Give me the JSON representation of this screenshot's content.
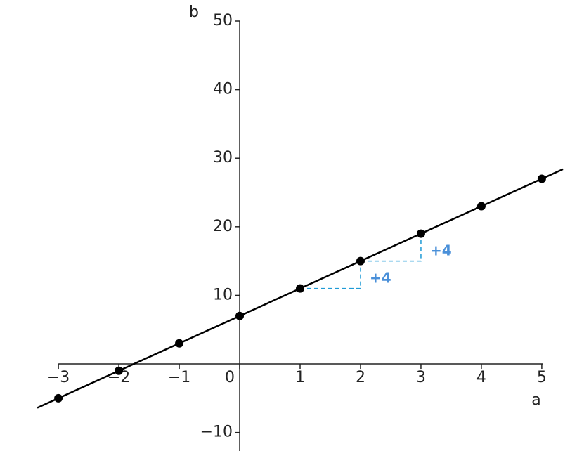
{
  "chart_data": {
    "type": "line",
    "x_label": "a",
    "y_label": "b",
    "series": [
      {
        "name": "points",
        "style": "markers",
        "color": "#000000",
        "x": [
          -3,
          -2,
          -1,
          0,
          1,
          2,
          3,
          4,
          5
        ],
        "values": [
          -5,
          -1,
          3,
          7,
          11,
          15,
          19,
          23,
          27
        ]
      },
      {
        "name": "line",
        "style": "line",
        "color": "#000000",
        "x": [
          -3.35,
          5.35
        ],
        "values": [
          -6.4,
          28.4
        ]
      }
    ],
    "annotations": [
      {
        "text": "+4",
        "from": [
          1,
          11
        ],
        "to": [
          2,
          15
        ],
        "color": "#4a90d9"
      },
      {
        "text": "+4",
        "from": [
          2,
          15
        ],
        "to": [
          3,
          19
        ],
        "color": "#4a90d9"
      }
    ],
    "xlim": [
      -3.35,
      5.35
    ],
    "ylim": [
      -12.7,
      50
    ],
    "xticks": [
      {
        "value": -3,
        "label": "−3"
      },
      {
        "value": -2,
        "label": "−2"
      },
      {
        "value": -1,
        "label": "−1"
      },
      0,
      1,
      2,
      3,
      4,
      5
    ],
    "yticks": [
      {
        "value": -10,
        "label": "−10"
      },
      10,
      20,
      30,
      40,
      50
    ]
  }
}
